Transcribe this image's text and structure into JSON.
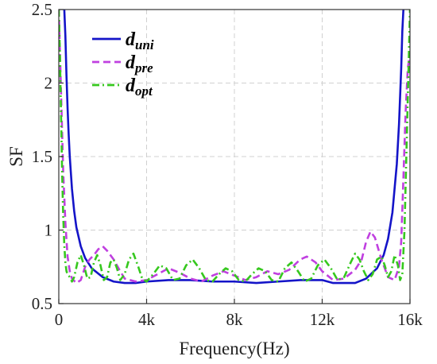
{
  "chart_data": {
    "type": "line",
    "title": "",
    "xlabel": "Frequency(Hz)",
    "ylabel": "SF",
    "xlim": [
      0,
      16000
    ],
    "ylim": [
      0.5,
      2.5
    ],
    "xticks": [
      0,
      4000,
      8000,
      12000,
      16000
    ],
    "xtick_labels": [
      "0",
      "4k",
      "8k",
      "12k",
      "16k"
    ],
    "yticks": [
      0.5,
      1,
      1.5,
      2,
      2.5
    ],
    "ytick_labels": [
      "0.5",
      "1",
      "1.5",
      "2",
      "2.5"
    ],
    "grid": true,
    "legend_position": "top-left",
    "series": [
      {
        "name": "d_uni",
        "label_main": "d",
        "label_sub": "uni",
        "color": "#1414c8",
        "dash": "solid",
        "x": [
          250,
          300,
          350,
          400,
          450,
          500,
          600,
          700,
          800,
          1000,
          1200,
          1500,
          2000,
          2500,
          3000,
          3500,
          4000,
          5000,
          6000,
          7000,
          8000,
          9000,
          10000,
          11000,
          12000,
          12500,
          13000,
          13500,
          14000,
          14500,
          14800,
          15000,
          15200,
          15400,
          15500,
          15600,
          15650,
          15700
        ],
        "y": [
          2.5,
          2.32,
          2.05,
          1.83,
          1.65,
          1.5,
          1.28,
          1.13,
          1.02,
          0.89,
          0.81,
          0.74,
          0.68,
          0.65,
          0.64,
          0.64,
          0.65,
          0.66,
          0.66,
          0.65,
          0.65,
          0.64,
          0.65,
          0.66,
          0.66,
          0.64,
          0.64,
          0.64,
          0.67,
          0.74,
          0.83,
          0.94,
          1.12,
          1.45,
          1.72,
          2.1,
          2.35,
          2.5
        ]
      },
      {
        "name": "d_pre",
        "label_main": "d",
        "label_sub": "pre",
        "color": "#c040e0",
        "dash": "dashed",
        "x": [
          0,
          100,
          200,
          300,
          400,
          500,
          600,
          800,
          1000,
          1200,
          1400,
          1600,
          1800,
          2000,
          2200,
          2500,
          2800,
          3000,
          3500,
          4000,
          4500,
          5000,
          5500,
          6000,
          6500,
          7000,
          7500,
          8000,
          8500,
          9000,
          9500,
          10000,
          10500,
          11000,
          11300,
          11700,
          12000,
          12500,
          13000,
          13500,
          13800,
          14000,
          14200,
          14400,
          14700,
          15000,
          15300,
          15500,
          15600,
          15700,
          15800,
          15900,
          16000
        ],
        "y": [
          2.5,
          1.95,
          1.4,
          1.05,
          0.82,
          0.72,
          0.67,
          0.64,
          0.66,
          0.75,
          0.8,
          0.83,
          0.87,
          0.89,
          0.86,
          0.8,
          0.72,
          0.67,
          0.65,
          0.66,
          0.7,
          0.74,
          0.71,
          0.67,
          0.65,
          0.69,
          0.72,
          0.69,
          0.66,
          0.68,
          0.72,
          0.7,
          0.73,
          0.8,
          0.82,
          0.78,
          0.72,
          0.66,
          0.67,
          0.73,
          0.8,
          0.92,
          0.99,
          0.95,
          0.8,
          0.68,
          0.66,
          0.75,
          0.92,
          1.35,
          1.8,
          2.1,
          2.2
        ]
      },
      {
        "name": "d_opt",
        "label_main": "d",
        "label_sub": "opt",
        "color": "#36c81e",
        "dash": "dashdot",
        "x": [
          0,
          50,
          100,
          150,
          200,
          250,
          300,
          350,
          400,
          450,
          500,
          600,
          700,
          850,
          1000,
          1150,
          1300,
          1450,
          1600,
          1750,
          1900,
          2050,
          2200,
          2350,
          2500,
          2650,
          2800,
          3000,
          3200,
          3400,
          3600,
          3800,
          4000,
          4300,
          4600,
          4900,
          5200,
          5500,
          5800,
          6100,
          6400,
          6700,
          7000,
          7300,
          7600,
          7900,
          8200,
          8500,
          8800,
          9100,
          9400,
          9700,
          10000,
          10300,
          10600,
          10900,
          11200,
          11500,
          11800,
          12100,
          12400,
          12700,
          13000,
          13300,
          13500,
          13700,
          13900,
          14100,
          14300,
          14500,
          14700,
          14850,
          15000,
          15150,
          15300,
          15450,
          15550,
          15650,
          15750,
          15850,
          15950,
          16000
        ],
        "y": [
          2.5,
          2.2,
          1.8,
          1.4,
          1.1,
          0.9,
          0.78,
          0.72,
          0.7,
          0.69,
          0.68,
          0.65,
          0.68,
          0.78,
          0.83,
          0.76,
          0.67,
          0.68,
          0.78,
          0.83,
          0.76,
          0.66,
          0.68,
          0.78,
          0.8,
          0.74,
          0.66,
          0.7,
          0.8,
          0.84,
          0.76,
          0.67,
          0.65,
          0.7,
          0.76,
          0.74,
          0.66,
          0.67,
          0.76,
          0.8,
          0.74,
          0.66,
          0.65,
          0.7,
          0.74,
          0.72,
          0.66,
          0.65,
          0.7,
          0.74,
          0.72,
          0.66,
          0.65,
          0.74,
          0.78,
          0.72,
          0.65,
          0.67,
          0.76,
          0.8,
          0.74,
          0.66,
          0.68,
          0.78,
          0.84,
          0.8,
          0.72,
          0.66,
          0.7,
          0.8,
          0.82,
          0.76,
          0.68,
          0.72,
          0.83,
          0.76,
          0.66,
          0.7,
          1.0,
          1.6,
          2.2,
          2.5
        ]
      }
    ]
  }
}
